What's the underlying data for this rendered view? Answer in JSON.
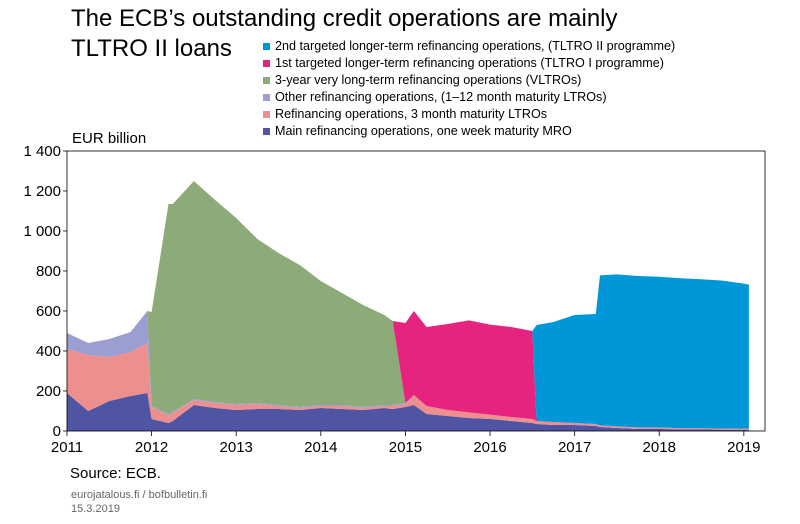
{
  "title_line1": "The ECB’s outstanding credit operations are mainly",
  "title_line2": "TLTRO II loans",
  "unit_label": "EUR billion",
  "source": "Source: ECB.",
  "site": "eurojatalous.fi / bofbulletin.fi",
  "date": "15.3.2019",
  "legend": [
    {
      "label": "2nd targeted longer-term refinancing operations, (TLTRO II programme)",
      "color": "#0097d9"
    },
    {
      "label": "1st targeted longer-term refinancing operations (TLTRO I programme)",
      "color": "#e6237e"
    },
    {
      "label": "3-year very long-term refinancing operations (VLTROs)",
      "color": "#8cab78"
    },
    {
      "label": "Other refinancing operations, (1–12 month maturity LTROs)",
      "color": "#9b9ed1"
    },
    {
      "label": "Refinancing operations, 3 month maturity LTROs",
      "color": "#ee8f8f"
    },
    {
      "label": "Main refinancing operations, one week maturity MRO",
      "color": "#4f55a3"
    }
  ],
  "chart_data": {
    "type": "area",
    "stacked": true,
    "ylabel": "EUR billion",
    "ylim": [
      0,
      1400
    ],
    "yticks": [
      0,
      200,
      400,
      600,
      800,
      1000,
      1200,
      1400
    ],
    "ytick_labels": [
      "0",
      "200",
      "400",
      "600",
      "800",
      "1 000",
      "1 200",
      "1 400"
    ],
    "xlim": [
      2011,
      2019.25
    ],
    "xticks": [
      2011,
      2012,
      2013,
      2014,
      2015,
      2016,
      2017,
      2018,
      2019
    ],
    "xtick_labels": [
      "2011",
      "2012",
      "2013",
      "2014",
      "2015",
      "2016",
      "2017",
      "2018",
      "2019"
    ],
    "x": [
      2011.0,
      2011.25,
      2011.5,
      2011.75,
      2011.95,
      2012.0,
      2012.2,
      2012.25,
      2012.5,
      2012.75,
      2013.0,
      2013.25,
      2013.5,
      2013.75,
      2014.0,
      2014.25,
      2014.5,
      2014.75,
      2014.85,
      2015.0,
      2015.1,
      2015.25,
      2015.5,
      2015.75,
      2016.0,
      2016.25,
      2016.5,
      2016.55,
      2016.75,
      2017.0,
      2017.25,
      2017.3,
      2017.5,
      2017.75,
      2018.0,
      2018.25,
      2018.5,
      2018.75,
      2019.0,
      2019.06
    ],
    "series": [
      {
        "name": "Main refinancing operations, one week maturity MRO",
        "color": "#4f55a3",
        "values": [
          190,
          100,
          150,
          175,
          190,
          60,
          40,
          50,
          130,
          115,
          105,
          110,
          110,
          105,
          115,
          110,
          105,
          115,
          110,
          120,
          130,
          85,
          75,
          65,
          60,
          50,
          40,
          35,
          30,
          30,
          25,
          20,
          15,
          10,
          10,
          8,
          8,
          6,
          6,
          6
        ]
      },
      {
        "name": "Refinancing operations, 3 month maturity LTROs",
        "color": "#ee8f8f",
        "values": [
          220,
          280,
          220,
          220,
          250,
          60,
          40,
          40,
          25,
          25,
          25,
          25,
          15,
          10,
          10,
          15,
          10,
          10,
          15,
          15,
          50,
          40,
          30,
          28,
          22,
          20,
          20,
          15,
          15,
          10,
          10,
          8,
          8,
          8,
          8,
          6,
          6,
          6,
          6,
          6
        ]
      },
      {
        "name": "Other refinancing operations, (1–12 month maturity LTROs)",
        "color": "#9b9ed1",
        "values": [
          80,
          60,
          90,
          100,
          160,
          5,
          5,
          5,
          5,
          5,
          5,
          5,
          5,
          5,
          5,
          5,
          5,
          5,
          5,
          5,
          0,
          0,
          0,
          0,
          0,
          0,
          0,
          0,
          0,
          0,
          0,
          0,
          0,
          0,
          0,
          0,
          0,
          0,
          0,
          0
        ]
      },
      {
        "name": "3-year very long-term refinancing operations (VLTROs)",
        "color": "#8cab78",
        "values": [
          0,
          0,
          0,
          0,
          0,
          470,
          1050,
          1040,
          1090,
          1010,
          930,
          820,
          760,
          710,
          620,
          560,
          510,
          450,
          420,
          0,
          0,
          0,
          0,
          0,
          0,
          0,
          0,
          0,
          0,
          0,
          0,
          0,
          0,
          0,
          0,
          0,
          0,
          0,
          0,
          0
        ]
      },
      {
        "name": "1st targeted longer-term refinancing operations (TLTRO I programme)",
        "color": "#e6237e",
        "values": [
          0,
          0,
          0,
          0,
          0,
          0,
          0,
          0,
          0,
          0,
          0,
          0,
          0,
          0,
          0,
          0,
          0,
          0,
          0,
          400,
          420,
          395,
          430,
          460,
          450,
          450,
          440,
          0,
          0,
          0,
          0,
          0,
          0,
          0,
          0,
          0,
          0,
          0,
          0,
          0
        ]
      },
      {
        "name": "2nd targeted longer-term refinancing operations, (TLTRO II programme)",
        "color": "#0097d9",
        "values": [
          0,
          0,
          0,
          0,
          0,
          0,
          0,
          0,
          0,
          0,
          0,
          0,
          0,
          0,
          0,
          0,
          0,
          0,
          0,
          0,
          0,
          0,
          0,
          0,
          0,
          0,
          0,
          480,
          500,
          540,
          550,
          750,
          760,
          757,
          753,
          750,
          745,
          740,
          725,
          720
        ]
      }
    ]
  }
}
